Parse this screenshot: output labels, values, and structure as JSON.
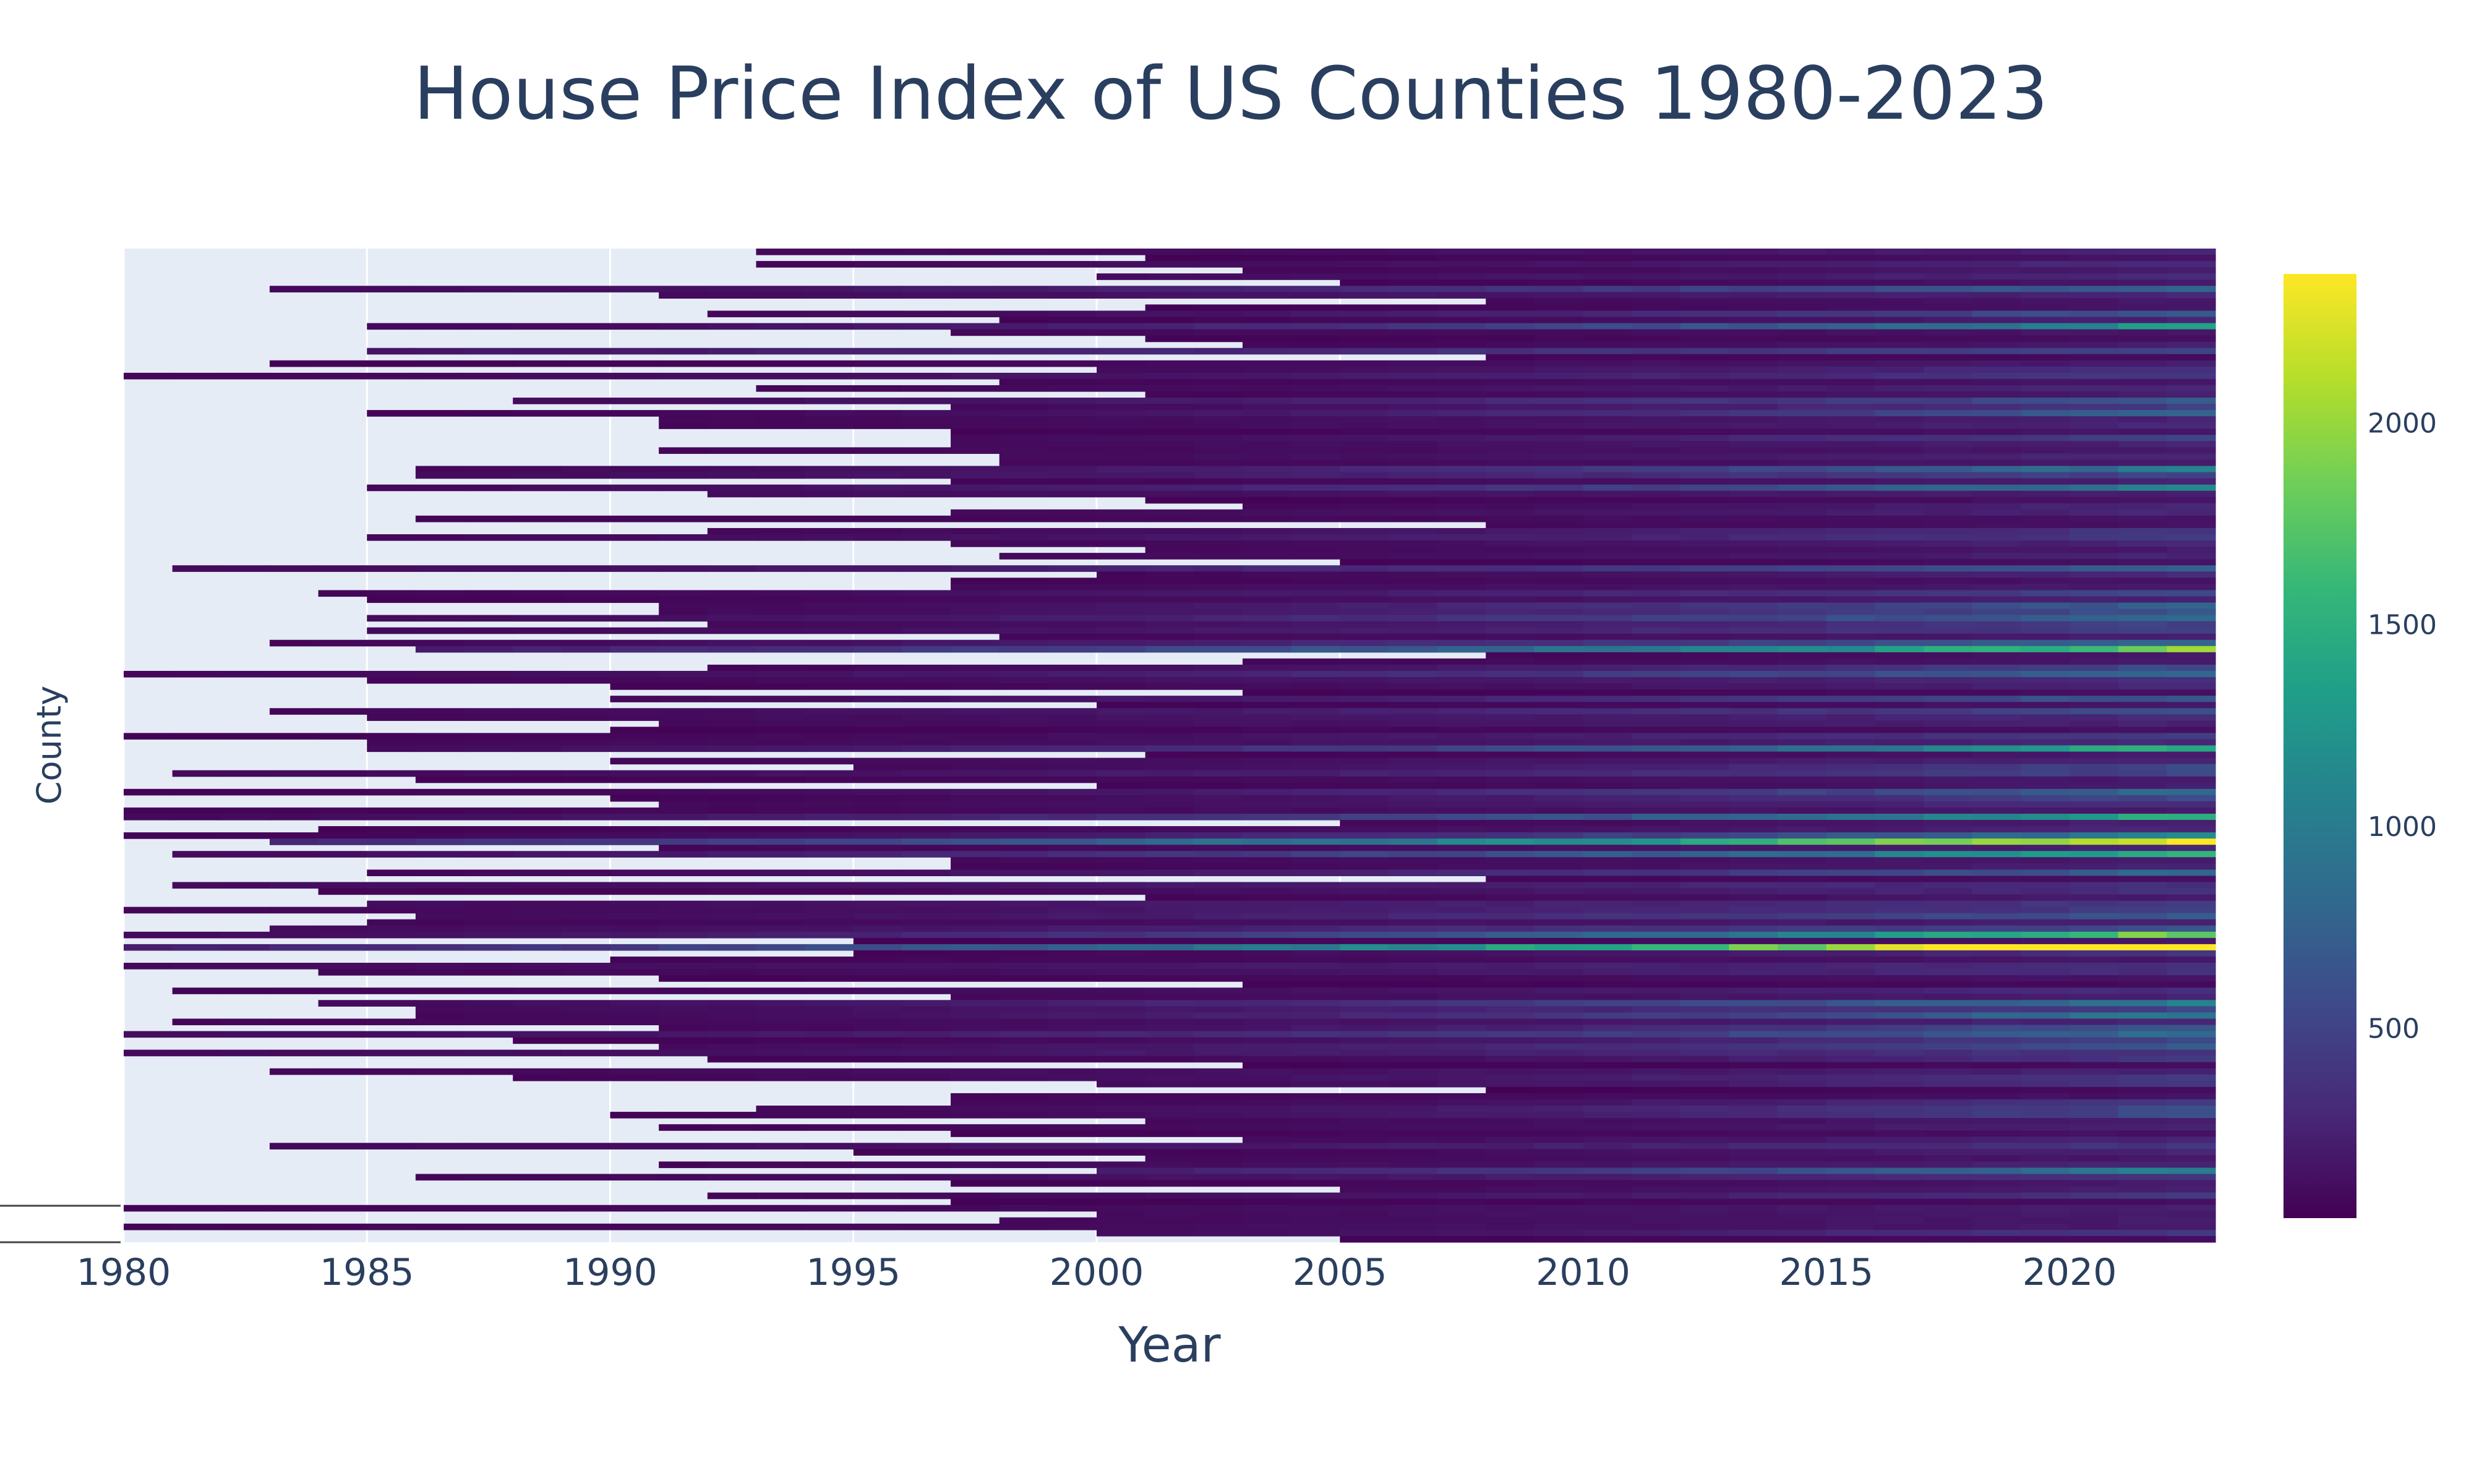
{
  "chart_data": {
    "type": "heatmap",
    "title": "House Price Index of US Counties 1980-2023",
    "xlabel": "Year",
    "ylabel": "County",
    "x_range": [
      1980,
      2022
    ],
    "x_ticks": [
      1980,
      1985,
      1990,
      1995,
      2000,
      2005,
      2010,
      2015,
      2020
    ],
    "y_tick_labels": "not shown",
    "colorscale": "Viridis",
    "colorscale_stops": [
      "#440154",
      "#482878",
      "#3e4989",
      "#31688e",
      "#26828e",
      "#1f9e89",
      "#35b779",
      "#6ece58",
      "#b5de2b",
      "#fde725"
    ],
    "z_range": [
      30,
      2370
    ],
    "colorbar_ticks": [
      500,
      1000,
      1500,
      2000
    ],
    "missing_color": "#e5ecf6",
    "grid": "on",
    "legend": "colorbar at right"
  }
}
